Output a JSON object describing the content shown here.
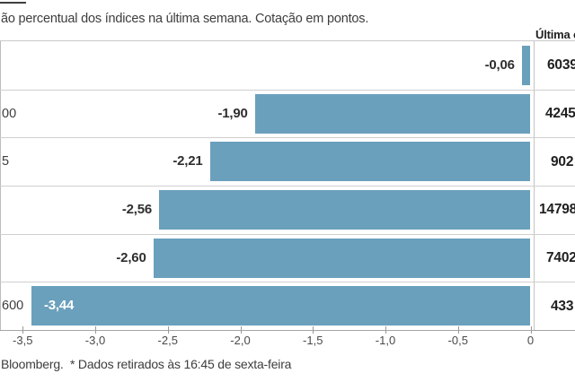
{
  "header": {
    "subtitle": "ão percentual dos índices na última semana. Cotação em pontos.",
    "last_quote_column_title": "Última co"
  },
  "chart_data": {
    "type": "bar",
    "orientation": "horizontal",
    "title": "",
    "xlabel": "",
    "ylabel": "",
    "categories": [
      "",
      "00",
      "5",
      "",
      "",
      "600"
    ],
    "values": [
      -0.06,
      -1.9,
      -2.21,
      -2.56,
      -2.6,
      -3.44
    ],
    "bar_labels": [
      "-0,06",
      "-1,90",
      "-2,21",
      "-2,56",
      "-2,60",
      "-3,44"
    ],
    "last_quotes": [
      "6039",
      "4245",
      "902",
      "14798",
      "7402",
      "433"
    ],
    "x_tick_values": [
      -3.5,
      -3.0,
      -2.5,
      -2.0,
      -1.5,
      -1.0,
      -0.5,
      0
    ],
    "x_tick_labels": [
      "-3,5",
      "-3,0",
      "-2,5",
      "-2,0",
      "-1,5",
      "-1,0",
      "-0,5",
      "0"
    ],
    "xlim": [
      -3.5,
      0
    ],
    "bar_color": "#6aa0bc",
    "grid": "horizontal-row-separators",
    "legend": "none"
  },
  "footer": {
    "source_note": "Bloomberg.  * Dados retirados às 16:45 de sexta-feira"
  }
}
